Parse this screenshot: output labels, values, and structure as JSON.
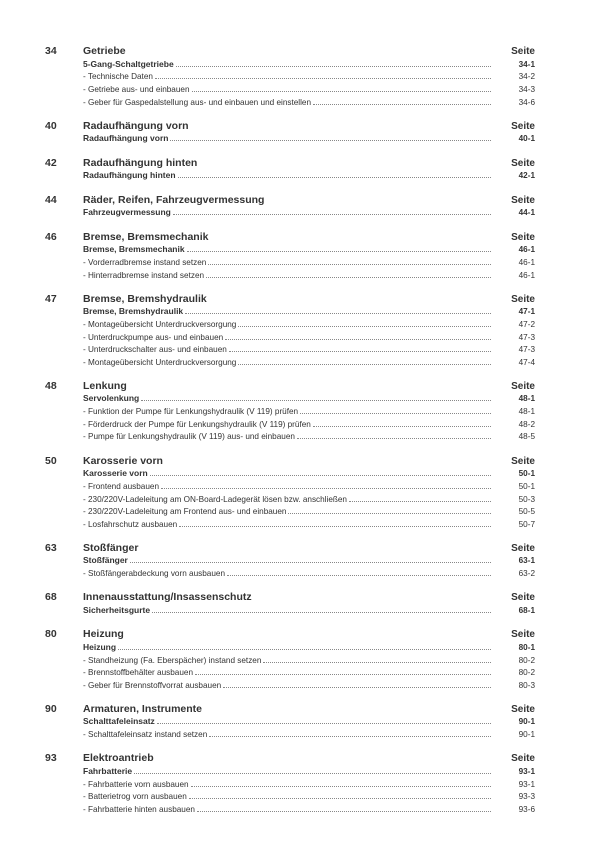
{
  "seite_label": "Seite",
  "sections": [
    {
      "num": "34",
      "title": "Getriebe",
      "rows": [
        {
          "bold": true,
          "label": "5-Gang-Schaltgetriebe",
          "page": "34-1"
        },
        {
          "bold": false,
          "label": "- Technische Daten",
          "page": "34-2"
        },
        {
          "bold": false,
          "label": "- Getriebe aus- und einbauen",
          "page": "34-3"
        },
        {
          "bold": false,
          "label": "- Geber für Gaspedalstellung aus- und einbauen und einstellen",
          "page": "34-6"
        }
      ]
    },
    {
      "num": "40",
      "title": "Radaufhängung vorn",
      "rows": [
        {
          "bold": true,
          "label": "Radaufhängung vorn",
          "page": "40-1"
        }
      ]
    },
    {
      "num": "42",
      "title": "Radaufhängung hinten",
      "rows": [
        {
          "bold": true,
          "label": "Radaufhängung hinten",
          "page": "42-1"
        }
      ]
    },
    {
      "num": "44",
      "title": "Räder, Reifen, Fahrzeugvermessung",
      "rows": [
        {
          "bold": true,
          "label": "Fahrzeugvermessung",
          "page": "44-1"
        }
      ]
    },
    {
      "num": "46",
      "title": "Bremse, Bremsmechanik",
      "rows": [
        {
          "bold": true,
          "label": "Bremse, Bremsmechanik",
          "page": "46-1"
        },
        {
          "bold": false,
          "label": "- Vorderradbremse instand setzen",
          "page": "46-1"
        },
        {
          "bold": false,
          "label": "- Hinterradbremse instand setzen",
          "page": "46-1"
        }
      ]
    },
    {
      "num": "47",
      "title": "Bremse, Bremshydraulik",
      "rows": [
        {
          "bold": true,
          "label": "Bremse, Bremshydraulik",
          "page": "47-1"
        },
        {
          "bold": false,
          "label": "- Montageübersicht Unterdruckversorgung",
          "page": "47-2"
        },
        {
          "bold": false,
          "label": "- Unterdruckpumpe aus- und einbauen",
          "page": "47-3"
        },
        {
          "bold": false,
          "label": "- Unterdruckschalter aus- und einbauen",
          "page": "47-3"
        },
        {
          "bold": false,
          "label": "- Montageübersicht Unterdruckversorgung",
          "page": "47-4"
        }
      ]
    },
    {
      "num": "48",
      "title": "Lenkung",
      "rows": [
        {
          "bold": true,
          "label": "Servolenkung",
          "page": "48-1"
        },
        {
          "bold": false,
          "label": "- Funktion der Pumpe für Lenkungshydraulik (V 119) prüfen",
          "page": "48-1"
        },
        {
          "bold": false,
          "label": "- Förderdruck der Pumpe für Lenkungshydraulik (V 119) prüfen",
          "page": "48-2"
        },
        {
          "bold": false,
          "label": "- Pumpe für Lenkungshydraulik (V 119) aus- und einbauen",
          "page": "48-5"
        }
      ]
    },
    {
      "num": "50",
      "title": "Karosserie vorn",
      "rows": [
        {
          "bold": true,
          "label": "Karosserie vorn",
          "page": "50-1"
        },
        {
          "bold": false,
          "label": "- Frontend ausbauen",
          "page": "50-1"
        },
        {
          "bold": false,
          "label": "- 230/220V-Ladeleitung am ON-Board-Ladegerät lösen bzw. anschließen",
          "page": "50-3"
        },
        {
          "bold": false,
          "label": "- 230/220V-Ladeleitung am Frontend aus- und einbauen",
          "page": "50-5"
        },
        {
          "bold": false,
          "label": "- Losfahrschutz ausbauen",
          "page": "50-7"
        }
      ]
    },
    {
      "num": "63",
      "title": "Stoßfänger",
      "rows": [
        {
          "bold": true,
          "label": "Stoßfänger",
          "page": "63-1"
        },
        {
          "bold": false,
          "label": "- Stoßfängerabdeckung vorn ausbauen",
          "page": "63-2"
        }
      ]
    },
    {
      "num": "68",
      "title": "Innenausstattung/Insassenschutz",
      "rows": [
        {
          "bold": true,
          "label": "Sicherheitsgurte",
          "page": "68-1"
        }
      ]
    },
    {
      "num": "80",
      "title": "Heizung",
      "rows": [
        {
          "bold": true,
          "label": "Heizung",
          "page": "80-1"
        },
        {
          "bold": false,
          "label": "- Standheizung (Fa. Eberspächer) instand setzen",
          "page": "80-2"
        },
        {
          "bold": false,
          "label": "- Brennstoffbehälter ausbauen",
          "page": "80-2"
        },
        {
          "bold": false,
          "label": "- Geber für Brennstoffvorrat ausbauen",
          "page": "80-3"
        }
      ]
    },
    {
      "num": "90",
      "title": "Armaturen, Instrumente",
      "rows": [
        {
          "bold": true,
          "label": "Schalttafeleinsatz",
          "page": "90-1"
        },
        {
          "bold": false,
          "label": "- Schalttafeleinsatz instand setzen",
          "page": "90-1"
        }
      ]
    },
    {
      "num": "93",
      "title": "Elektroantrieb",
      "rows": [
        {
          "bold": true,
          "label": "Fahrbatterie",
          "page": "93-1"
        },
        {
          "bold": false,
          "label": "- Fahrbatterie vorn ausbauen",
          "page": "93-1"
        },
        {
          "bold": false,
          "label": "- Batterietrog vorn ausbauen",
          "page": "93-3"
        },
        {
          "bold": false,
          "label": "- Fahrbatterie hinten ausbauen",
          "page": "93-6"
        }
      ]
    }
  ]
}
